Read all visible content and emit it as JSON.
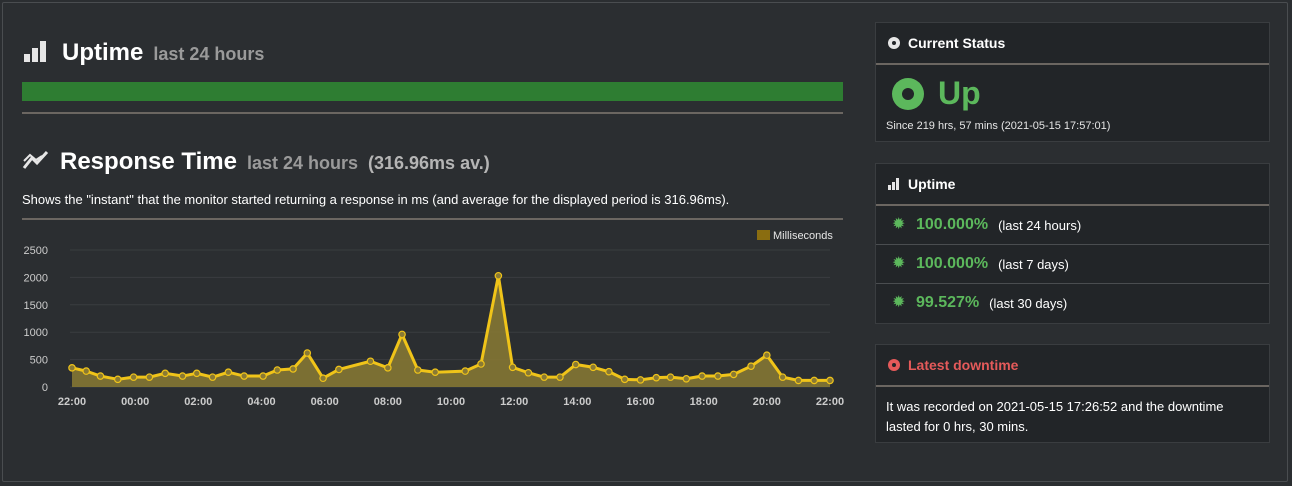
{
  "uptime_section": {
    "title": "Uptime",
    "subtitle": "last 24 hours",
    "bar_color": "#2e7d32",
    "bar_fraction": 1.0
  },
  "response_section": {
    "title": "Response Time",
    "subtitle": "last 24 hours",
    "average": "(316.96ms av.)",
    "description": "Shows the \"instant\" that the monitor started returning a response in ms (and average for the displayed period is 316.96ms)."
  },
  "chart_data": {
    "type": "area",
    "legend": [
      "Milliseconds"
    ],
    "legend_position": "top-right",
    "ylim": [
      0,
      2500
    ],
    "y_ticks": [
      "0",
      "500",
      "1000",
      "1500",
      "2000",
      "2500"
    ],
    "x_ticks": [
      "22:00",
      "00:00",
      "02:00",
      "04:00",
      "06:00",
      "08:00",
      "10:00",
      "12:00",
      "14:00",
      "16:00",
      "18:00",
      "20:00",
      "22:00"
    ],
    "x_hours": [
      0,
      0.45,
      0.9,
      1.45,
      1.95,
      2.45,
      2.95,
      3.5,
      3.95,
      4.45,
      4.95,
      5.45,
      6.05,
      6.5,
      7.0,
      7.45,
      7.95,
      8.45,
      9.45,
      10.0,
      10.45,
      10.95,
      11.5,
      12.45,
      12.95,
      13.5,
      13.95,
      14.45,
      14.95,
      15.45,
      15.95,
      16.5,
      17.0,
      17.5,
      18.0,
      18.5,
      18.95,
      19.45,
      19.95,
      20.45,
      20.95,
      21.5,
      22.0,
      22.5,
      23.0,
      23.5,
      24.0
    ],
    "series": [
      {
        "name": "Milliseconds",
        "values": [
          350,
          290,
          200,
          140,
          180,
          180,
          250,
          200,
          250,
          180,
          270,
          200,
          200,
          310,
          330,
          620,
          160,
          320,
          470,
          350,
          960,
          310,
          270,
          290,
          420,
          2030,
          360,
          260,
          180,
          180,
          410,
          360,
          280,
          140,
          130,
          170,
          180,
          150,
          200,
          200,
          230,
          380,
          580,
          180,
          120,
          120,
          120
        ]
      }
    ],
    "grid": true,
    "line_color": "#f0c419",
    "fill_color": "#8a7a34"
  },
  "current_status": {
    "title": "Current Status",
    "status": "Up",
    "since": "Since 219 hrs, 57 mins (2021-05-15 17:57:01)"
  },
  "uptime_panel": {
    "title": "Uptime",
    "rows": [
      {
        "pct": "100.000%",
        "period": "(last 24 hours)"
      },
      {
        "pct": "100.000%",
        "period": "(last 7 days)"
      },
      {
        "pct": "99.527%",
        "period": "(last 30 days)"
      }
    ]
  },
  "latest_downtime": {
    "title": "Latest downtime",
    "text": "It was recorded on 2021-05-15 17:26:52 and the downtime lasted for 0 hrs, 30 mins."
  }
}
